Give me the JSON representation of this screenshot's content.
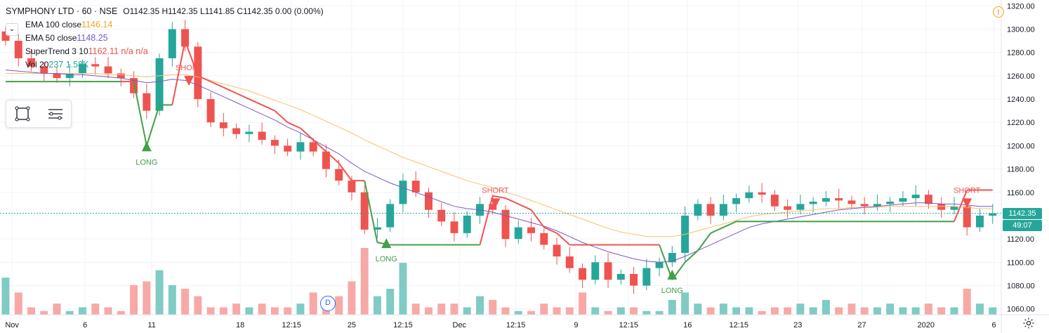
{
  "header": {
    "symbol": "SYMPHONY LTD · 60 · NSE",
    "ohlc": "O1142.35  H1142.35  L1141.85  C1142.35  0.00 (0.00%)"
  },
  "indicators": [
    {
      "name": "EMA 100 close",
      "value": "1146.14",
      "color": "#f5a623"
    },
    {
      "name": "EMA 50 close",
      "value": "1148.25",
      "color": "#7e57c2"
    },
    {
      "name": "SuperTrend 3 10",
      "value": "1162.11  n/a  n/a",
      "color": "#ef5350"
    },
    {
      "name": "Vol 20",
      "value": "237  1.58K",
      "color": "#26a69a"
    }
  ],
  "price_labels": {
    "last": "1142.35",
    "countdown": "49:07"
  },
  "signals": [
    {
      "label": "LONG",
      "type": "long",
      "x_index": 11.0,
      "price": 1200
    },
    {
      "label": "SHORT",
      "type": "short",
      "x_index": 14.3,
      "price": 1255
    },
    {
      "label": "LONG",
      "type": "long",
      "x_index": 29.7,
      "price": 1117
    },
    {
      "label": "SHORT",
      "type": "short",
      "x_index": 38.2,
      "price": 1150
    },
    {
      "label": "LONG",
      "type": "long",
      "x_index": 52.0,
      "price": 1090
    },
    {
      "label": "SHORT",
      "type": "short",
      "x_index": 75.0,
      "price": 1150
    }
  ],
  "badge": "D",
  "colors": {
    "up": "#26a69a",
    "down": "#ef5350",
    "ema100": "#f5c26b",
    "ema50": "#7e57c2",
    "st_up": "#43a047",
    "st_down": "#ef5350",
    "price_line": "#26a69a"
  },
  "chart_data": {
    "type": "candlestick",
    "title": "SYMPHONY LTD · 60 · NSE",
    "ylim": [
      1055,
      1325
    ],
    "y_ticks": [
      1060,
      1080,
      1100,
      1120,
      1140,
      1160,
      1180,
      1200,
      1220,
      1240,
      1260,
      1280,
      1300,
      1320
    ],
    "x_ticks": [
      {
        "i": 0.5,
        "label": "Nov"
      },
      {
        "i": 6.2,
        "label": "6"
      },
      {
        "i": 11.4,
        "label": "11"
      },
      {
        "i": 18.3,
        "label": "18"
      },
      {
        "i": 22.3,
        "label": "12:15"
      },
      {
        "i": 27.0,
        "label": "25"
      },
      {
        "i": 31.0,
        "label": "12:15"
      },
      {
        "i": 35.4,
        "label": "Dec"
      },
      {
        "i": 39.8,
        "label": "12:15"
      },
      {
        "i": 44.5,
        "label": "9"
      },
      {
        "i": 48.6,
        "label": "12:15"
      },
      {
        "i": 53.2,
        "label": "16"
      },
      {
        "i": 57.2,
        "label": "12:15"
      },
      {
        "i": 61.8,
        "label": "23"
      },
      {
        "i": 66.8,
        "label": "27"
      },
      {
        "i": 71.8,
        "label": "2020"
      },
      {
        "i": 77.1,
        "label": "6"
      }
    ],
    "closes": [
      1290,
      1275,
      1268,
      1262,
      1258,
      1262,
      1270,
      1268,
      1262,
      1258,
      1245,
      1230,
      1275,
      1300,
      1285,
      1240,
      1220,
      1215,
      1210,
      1212,
      1205,
      1200,
      1195,
      1203,
      1195,
      1180,
      1170,
      1160,
      1128,
      1130,
      1150,
      1170,
      1160,
      1145,
      1135,
      1125,
      1140,
      1150,
      1145,
      1120,
      1130,
      1125,
      1115,
      1105,
      1095,
      1085,
      1100,
      1085,
      1090,
      1080,
      1095,
      1100,
      1108,
      1140,
      1150,
      1140,
      1150,
      1155,
      1160,
      1158,
      1148,
      1145,
      1150,
      1152,
      1155,
      1153,
      1150,
      1148,
      1150,
      1152,
      1155,
      1158,
      1150,
      1145,
      1148,
      1130,
      1140,
      1142
    ],
    "supertrend": [
      1255,
      1255,
      1255,
      1255,
      1255,
      1255,
      1255,
      1255,
      1255,
      1255,
      1255,
      1200,
      1235,
      1235,
      1290,
      1260,
      1255,
      1250,
      1245,
      1240,
      1235,
      1230,
      1220,
      1215,
      1205,
      1195,
      1185,
      1170,
      1170,
      1117,
      1115,
      1115,
      1115,
      1115,
      1115,
      1115,
      1115,
      1115,
      1157,
      1155,
      1150,
      1145,
      1130,
      1125,
      1115,
      1115,
      1115,
      1115,
      1115,
      1115,
      1115,
      1115,
      1085,
      1100,
      1110,
      1125,
      1130,
      1135,
      1135,
      1135,
      1135,
      1135,
      1135,
      1135,
      1135,
      1135,
      1135,
      1135,
      1135,
      1135,
      1135,
      1135,
      1135,
      1135,
      1135,
      1162,
      1162,
      1162
    ],
    "ema50": [
      1265,
      1264,
      1263,
      1262,
      1262,
      1261,
      1261,
      1260,
      1259,
      1258,
      1256,
      1254,
      1255,
      1257,
      1256,
      1252,
      1247,
      1242,
      1237,
      1232,
      1227,
      1222,
      1216,
      1211,
      1205,
      1199,
      1193,
      1185,
      1178,
      1173,
      1168,
      1164,
      1160,
      1156,
      1152,
      1148,
      1146,
      1145,
      1143,
      1140,
      1137,
      1134,
      1131,
      1127,
      1122,
      1117,
      1113,
      1109,
      1106,
      1103,
      1101,
      1100,
      1101,
      1105,
      1110,
      1115,
      1120,
      1125,
      1130,
      1133,
      1135,
      1137,
      1139,
      1141,
      1143,
      1145,
      1146,
      1147,
      1148,
      1149,
      1150,
      1151,
      1151,
      1150,
      1150,
      1149,
      1148,
      1148
    ],
    "ema100": [
      1262,
      1262,
      1262,
      1262,
      1262,
      1262,
      1262,
      1262,
      1261,
      1261,
      1260,
      1259,
      1260,
      1261,
      1261,
      1259,
      1256,
      1253,
      1250,
      1247,
      1243,
      1239,
      1235,
      1231,
      1226,
      1221,
      1216,
      1211,
      1205,
      1200,
      1195,
      1190,
      1186,
      1182,
      1178,
      1174,
      1170,
      1167,
      1164,
      1160,
      1157,
      1153,
      1149,
      1145,
      1141,
      1137,
      1133,
      1129,
      1126,
      1124,
      1122,
      1122,
      1122,
      1124,
      1127,
      1130,
      1133,
      1136,
      1139,
      1141,
      1142,
      1143,
      1144,
      1145,
      1146,
      1146,
      1147,
      1147,
      1147,
      1148,
      1148,
      1148,
      1148,
      1148,
      1148,
      1147,
      1146,
      1146
    ],
    "volumes": [
      10,
      6,
      2,
      1,
      3,
      1,
      2,
      3,
      2,
      1,
      8,
      9,
      12,
      8,
      7,
      5,
      2,
      2,
      3,
      2,
      3,
      2,
      2,
      3,
      6,
      2,
      5,
      9,
      18,
      5,
      7,
      14,
      3,
      2,
      3,
      3,
      2,
      5,
      4,
      2,
      1,
      1,
      3,
      2,
      2,
      6,
      2,
      1,
      2,
      2,
      1,
      1,
      4,
      6,
      3,
      2,
      3,
      2,
      2,
      1,
      2,
      2,
      3,
      2,
      4,
      2,
      3,
      2,
      2,
      3,
      2,
      2,
      3,
      2,
      2,
      7,
      3,
      2
    ]
  }
}
